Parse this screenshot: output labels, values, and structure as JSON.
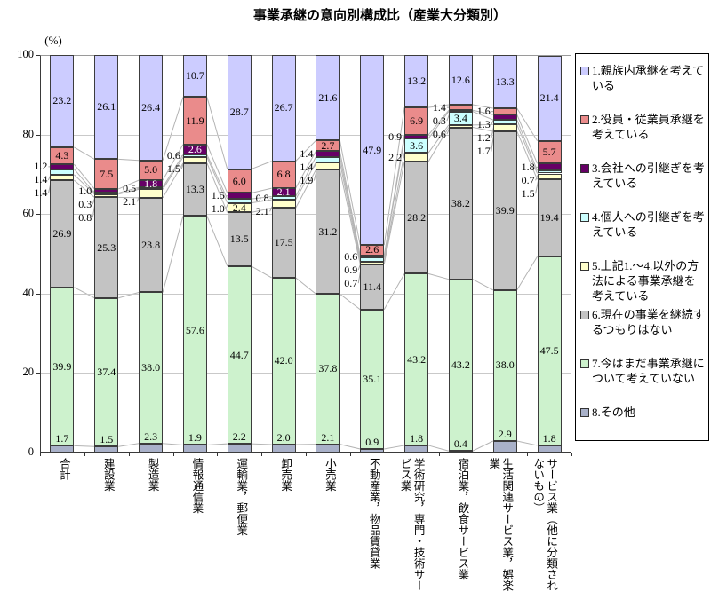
{
  "title": "事業承継の意向別構成比（産業大分類別）",
  "y_unit_label": "(%)",
  "chart_data": {
    "type": "bar",
    "stacked": true,
    "grid": true,
    "legend_position": "right",
    "y_axis": {
      "min": 0,
      "max": 100,
      "ticks": [
        0,
        20,
        40,
        60,
        80,
        100
      ]
    },
    "stack_order_bottom_to_top": [
      8,
      7,
      6,
      5,
      4,
      3,
      2,
      1
    ],
    "categories": [
      "合計",
      "建設業",
      "製造業",
      "情報通信業",
      "運輸業，郵便業",
      "卸売業",
      "小売業",
      "不動産業，物品賃貸業",
      "学術研究，専門・技術サービス業",
      "宿泊業，飲食サービス業",
      "生活関連サービス業，娯楽業",
      "サービス業（他に分類されないもの）"
    ],
    "series": [
      {
        "id": 1,
        "label": "1.親族内承継を考えている",
        "color": "#ccccff",
        "values": [
          23.2,
          26.1,
          26.4,
          10.7,
          28.7,
          26.7,
          21.6,
          47.9,
          13.2,
          12.6,
          13.3,
          21.4
        ],
        "label_placement": [
          "in",
          "in",
          "in",
          "in",
          "in",
          "in",
          "in",
          "in",
          "in",
          "in",
          "in",
          "in"
        ]
      },
      {
        "id": 2,
        "label": "2.役員・従業員承継を考えている",
        "color": "#ea8b8b",
        "values": [
          4.3,
          7.5,
          5.0,
          11.9,
          6.0,
          6.8,
          2.7,
          2.6,
          6.9,
          1.4,
          1.6,
          5.7
        ],
        "label_placement": [
          "in",
          "in",
          "in",
          "in",
          "in",
          "in",
          "in",
          "in",
          "in",
          "left",
          "left",
          "in"
        ]
      },
      {
        "id": 3,
        "label": "3.会社への引継ぎを考えている",
        "color": "#660066",
        "values": [
          1.2,
          1.0,
          1.8,
          2.6,
          1.5,
          2.1,
          1.4,
          0.6,
          0.9,
          0.3,
          1.3,
          1.8
        ],
        "label_placement": [
          "left",
          "left",
          "in",
          "in",
          "left",
          "in",
          "left",
          "left",
          "left",
          "left",
          "left",
          "left"
        ]
      },
      {
        "id": 4,
        "label": "4.個人への引継ぎを考えている",
        "color": "#ccffff",
        "values": [
          1.4,
          0.3,
          0.5,
          0.6,
          1.0,
          0.8,
          1.4,
          0.9,
          3.6,
          3.4,
          1.2,
          0.7
        ],
        "label_placement": [
          "left",
          "left",
          "left",
          "left",
          "left",
          "left",
          "left",
          "left",
          "in",
          "in",
          "left",
          "left"
        ]
      },
      {
        "id": 5,
        "label": "5.上記1.～4.以外の方法による事業承継を考えている",
        "color": "#ffffcc",
        "values": [
          1.4,
          0.8,
          2.1,
          1.5,
          2.4,
          2.1,
          1.9,
          0.7,
          2.2,
          0.6,
          1.7,
          1.5
        ],
        "label_placement": [
          "left",
          "left",
          "left",
          "left",
          "in",
          "left",
          "left",
          "left",
          "left",
          "left",
          "left",
          "left"
        ]
      },
      {
        "id": 6,
        "label": "6.現在の事業を継続するつもりはない",
        "color": "#c3c3c3",
        "values": [
          26.9,
          25.3,
          23.8,
          13.3,
          13.5,
          17.5,
          31.2,
          11.4,
          28.2,
          38.2,
          39.9,
          19.4
        ],
        "label_placement": [
          "in",
          "in",
          "in",
          "in",
          "in",
          "in",
          "in",
          "in",
          "in",
          "in",
          "in",
          "in"
        ]
      },
      {
        "id": 7,
        "label": "7.今はまだ事業承継について考えていない",
        "color": "#cdf2cd",
        "values": [
          39.9,
          37.4,
          38.0,
          57.6,
          44.7,
          42.0,
          37.8,
          35.1,
          43.2,
          43.2,
          38.0,
          47.5
        ],
        "label_placement": [
          "in",
          "in",
          "in",
          "in",
          "in",
          "in",
          "in",
          "in",
          "in",
          "in",
          "in",
          "in"
        ]
      },
      {
        "id": 8,
        "label": "8.その他",
        "color": "#a9b1c9",
        "values": [
          1.7,
          1.5,
          2.3,
          1.9,
          2.2,
          2.0,
          2.1,
          0.9,
          1.8,
          0.4,
          2.9,
          1.8
        ],
        "label_placement": [
          "above",
          "above",
          "above",
          "above",
          "above",
          "above",
          "above",
          "above",
          "above",
          "above",
          "above",
          "above"
        ]
      }
    ]
  }
}
